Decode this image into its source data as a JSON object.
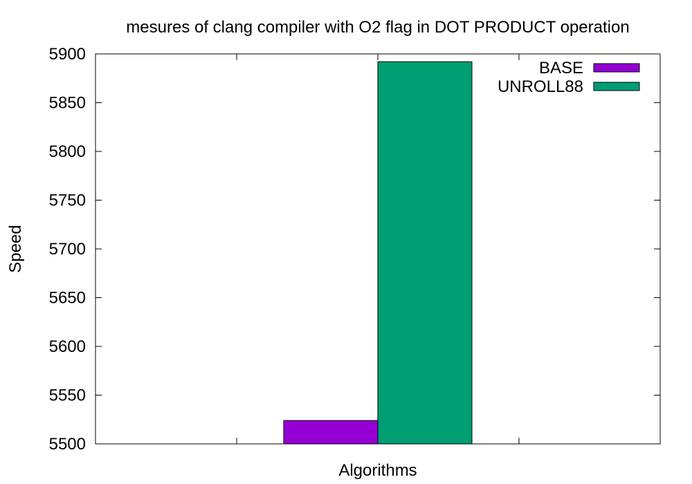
{
  "chart_data": {
    "type": "bar",
    "title": "mesures of clang compiler with O2 flag in DOT PRODUCT operation",
    "xlabel": "Algorithms",
    "ylabel": "Speed",
    "ylim": [
      5500,
      5900
    ],
    "yticks": [
      5500,
      5550,
      5600,
      5650,
      5700,
      5750,
      5800,
      5850,
      5900
    ],
    "categories": [
      ""
    ],
    "series": [
      {
        "name": "BASE",
        "values": [
          5524
        ],
        "color": "#9400d3"
      },
      {
        "name": "UNROLL88",
        "values": [
          5892
        ],
        "color": "#009e73"
      }
    ],
    "legend_position": "top-right",
    "grid": false
  }
}
